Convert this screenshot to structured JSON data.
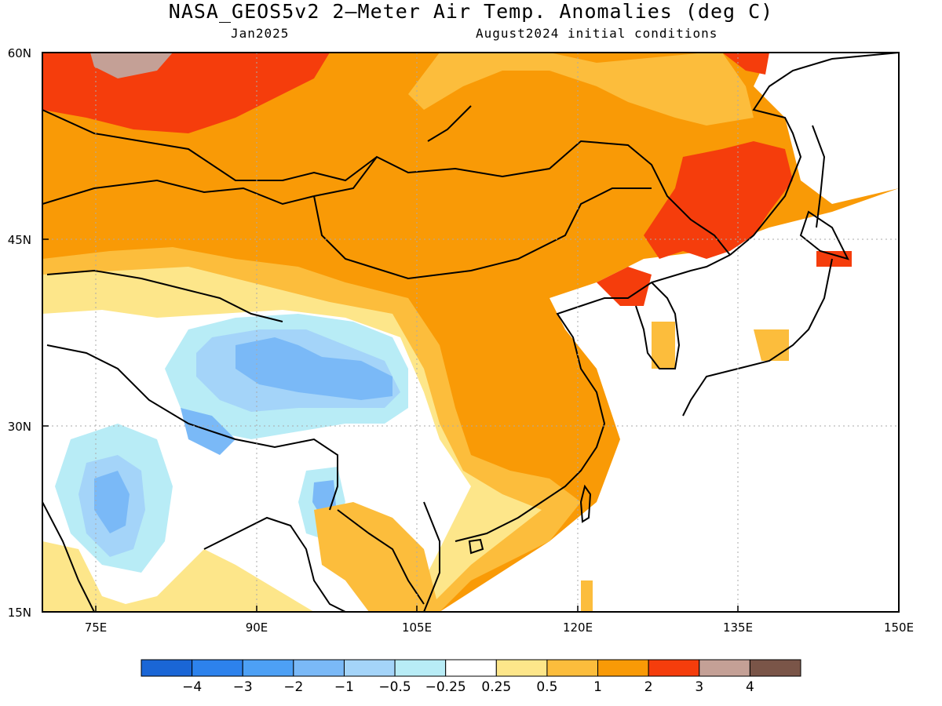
{
  "title": "NASA_GEOS5v2 2–Meter Air Temp. Anomalies (deg C)",
  "subtitle_left": "Jan2025",
  "subtitle_right": "August2024 initial conditions",
  "lat_labels": [
    "60N",
    "45N",
    "30N",
    "15N"
  ],
  "lon_labels": [
    "75E",
    "90E",
    "105E",
    "120E",
    "135E",
    "150E"
  ],
  "map_extent": {
    "lon": [
      70,
      150
    ],
    "lat": [
      15,
      60
    ]
  },
  "colorbar": {
    "labels": [
      "-4",
      "-3",
      "-2",
      "-1",
      "-0.5",
      "-0.25",
      "0.25",
      "0.5",
      "1",
      "2",
      "3",
      "4"
    ],
    "colors": [
      "#1a66d6",
      "#2d82ec",
      "#4da0f5",
      "#7ab9f7",
      "#a4d4f9",
      "#b8ecf6",
      "#ffffff",
      "#fde68a",
      "#fcbd3c",
      "#f99a06",
      "#f53d0c",
      "#c4a096",
      "#7a5548"
    ]
  },
  "colors": {
    "ocean": "#ffffff",
    "near_zero": "#ffffff",
    "warm_light": "#fde68a",
    "warm": "#fcbd3c",
    "warm_strong": "#f99a06",
    "hot": "#f53d0c",
    "very_hot": "#c4a096",
    "cool_light": "#b8ecf6",
    "cool": "#a4d4f9",
    "cooler": "#7ab9f7",
    "coastline": "#000000",
    "grid": "#aaaaaa"
  }
}
